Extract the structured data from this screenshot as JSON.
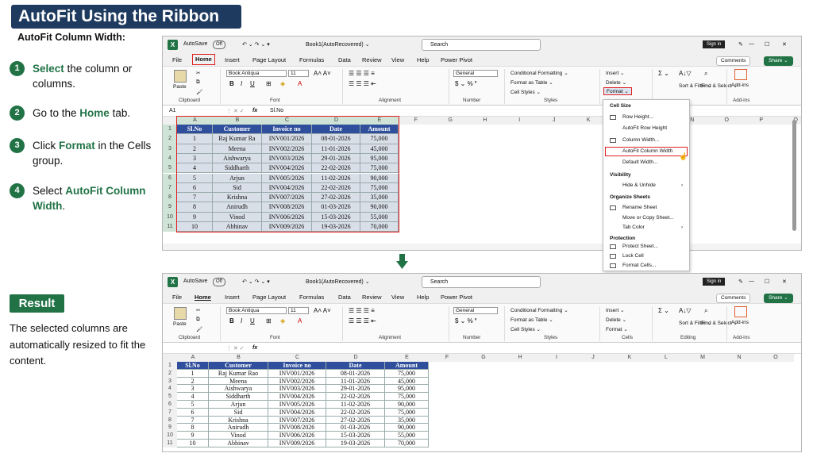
{
  "title": "AutoFit Using the Ribbon",
  "subtitle": "AutoFit Column Width:",
  "steps": [
    {
      "n": "1",
      "pre": "",
      "bold": "Select",
      "post": " the column or columns."
    },
    {
      "n": "2",
      "pre": "Go to the ",
      "bold": "Home",
      "post": " tab."
    },
    {
      "n": "3",
      "pre": "Click ",
      "bold": "Format",
      "post": " in the Cells group."
    },
    {
      "n": "4",
      "pre": "Select ",
      "bold": "AutoFit Column Width",
      "post": "."
    }
  ],
  "result": {
    "badge": "Result",
    "text": "The selected columns are automatically resized to fit the content."
  },
  "excel": {
    "autosave": "AutoSave",
    "toggle": "Off",
    "book": "Book1(AutoRecovered) ⌄",
    "search": "Search",
    "signin": "Sign in",
    "menus": [
      "File",
      "Home",
      "Insert",
      "Page Layout",
      "Formulas",
      "Data",
      "Review",
      "View",
      "Help",
      "Power Pivot"
    ],
    "comments": "Comments",
    "share": "Share ⌄",
    "font": "Book Antiqua",
    "size": "11",
    "numfmt": "General",
    "clip_group": "Clipboard",
    "font_group": "Font",
    "align_group": "Alignment",
    "num_group": "Number",
    "styles_group": "Styles",
    "cells_group": "Cells",
    "edit_group": "Editing",
    "addins_group": "Add-ins",
    "paste": "Paste",
    "cond": "Conditional Formatting ⌄",
    "fmt_table": "Format as Table ⌄",
    "cell_styles": "Cell Styles ⌄",
    "insert": "Insert ⌄",
    "delete": "Delete ⌄",
    "format": "Format ⌄",
    "sort": "Sort & Filter ⌄",
    "find": "Find & Select ⌄",
    "addins": "Add-ins",
    "namebox": "A1",
    "fx": "fx",
    "formula": "Sl.No",
    "cols1": [
      "A",
      "B",
      "C",
      "D",
      "E",
      "F",
      "G",
      "H",
      "I",
      "J",
      "K",
      "L",
      "M",
      "N",
      "O",
      "P",
      "Q"
    ],
    "cols2": [
      "A",
      "B",
      "C",
      "D",
      "E",
      "F",
      "G",
      "H",
      "I",
      "J",
      "K",
      "L",
      "M",
      "N",
      "O"
    ],
    "rows": [
      "1",
      "2",
      "3",
      "4",
      "5",
      "6",
      "7",
      "8",
      "9",
      "10",
      "11"
    ],
    "headers": [
      "Sl.No",
      "Customer",
      "Invoice no",
      "Date",
      "Amount"
    ],
    "data": [
      [
        "1",
        "Raj Kumar Rao",
        "INV001/2026",
        "08-01-2026",
        "75,000"
      ],
      [
        "2",
        "Meena",
        "INV002/2026",
        "11-01-2026",
        "45,000"
      ],
      [
        "3",
        "Aishwarya",
        "INV003/2026",
        "29-01-2026",
        "95,000"
      ],
      [
        "4",
        "Siddharth",
        "INV004/2026",
        "22-02-2026",
        "75,000"
      ],
      [
        "5",
        "Arjun",
        "INV005/2026",
        "11-02-2026",
        "90,000"
      ],
      [
        "6",
        "Sid",
        "INV004/2026",
        "22-02-2026",
        "75,000"
      ],
      [
        "7",
        "Krishna",
        "INV007/2026",
        "27-02-2026",
        "35,000"
      ],
      [
        "8",
        "Anirudh",
        "INV008/2026",
        "01-03-2026",
        "90,000"
      ],
      [
        "9",
        "Vinod",
        "INV006/2026",
        "15-03-2026",
        "55,000"
      ],
      [
        "10",
        "Abhinav",
        "INV009/2026",
        "19-03-2026",
        "70,000"
      ]
    ],
    "truncated_customer": "Raj Kumar Ra",
    "dropdown": {
      "cell_size": "Cell Size",
      "row_height": "Row Height...",
      "autofit_row": "AutoFit Row Height",
      "col_width": "Column Width...",
      "autofit_col": "AutoFit Column Width",
      "default_width": "Default Width...",
      "visibility": "Visibility",
      "hide": "Hide & Unhide",
      "organize": "Organize Sheets",
      "rename": "Rename Sheet",
      "move": "Move or Copy Sheet...",
      "tab_color": "Tab Color",
      "protection": "Protection",
      "protect": "Protect Sheet...",
      "lock": "Lock Cell",
      "fmt_cells": "Format Cells..."
    }
  },
  "colors": {
    "accent": "#217346",
    "title_bg": "#1f3a5f",
    "table_header": "#2f4f9c",
    "highlight": "#e02020"
  }
}
